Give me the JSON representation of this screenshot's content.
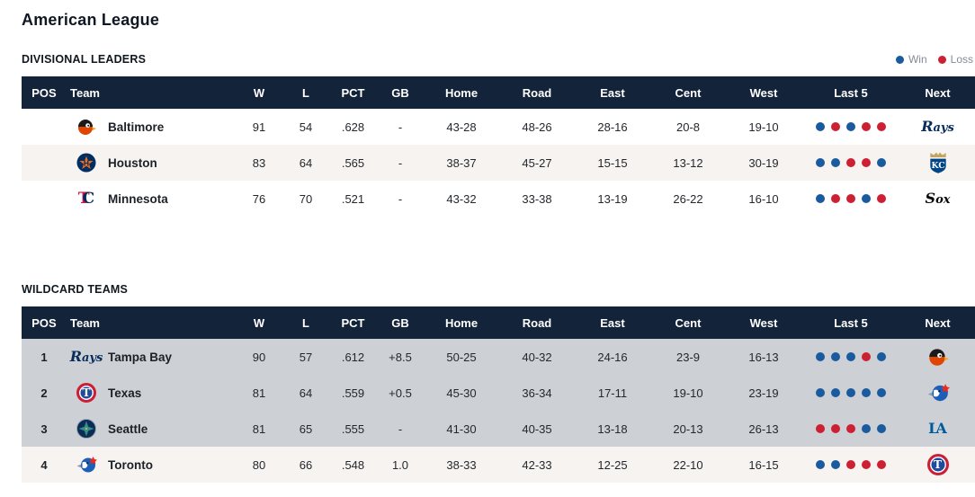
{
  "title": "American League",
  "legend": {
    "win": "Win",
    "loss": "Loss"
  },
  "colors": {
    "header_bg": "#13243a",
    "win_dot": "#1a5a9e",
    "loss_dot": "#cc2033",
    "wildcard_highlight_bg": "#cdd0d4",
    "stripe_bg": "#f6f3f0"
  },
  "columns": [
    "POS",
    "Team",
    "W",
    "L",
    "PCT",
    "GB",
    "Home",
    "Road",
    "East",
    "Cent",
    "West",
    "Last 5",
    "Next"
  ],
  "sections": [
    {
      "label": "DIVISIONAL LEADERS",
      "highlight_rows": [],
      "rows": [
        {
          "pos": "",
          "team": "Baltimore",
          "logo": "orioles",
          "w": "91",
          "l": "54",
          "pct": ".628",
          "gb": "-",
          "home": "43-28",
          "road": "48-26",
          "east": "28-16",
          "cent": "20-8",
          "west": "19-10",
          "last5": [
            "W",
            "L",
            "W",
            "L",
            "L"
          ],
          "next": "rays"
        },
        {
          "pos": "",
          "team": "Houston",
          "logo": "astros",
          "w": "83",
          "l": "64",
          "pct": ".565",
          "gb": "-",
          "home": "38-37",
          "road": "45-27",
          "east": "15-15",
          "cent": "13-12",
          "west": "30-19",
          "last5": [
            "W",
            "W",
            "L",
            "L",
            "W"
          ],
          "next": "royals"
        },
        {
          "pos": "",
          "team": "Minnesota",
          "logo": "twins",
          "w": "76",
          "l": "70",
          "pct": ".521",
          "gb": "-",
          "home": "43-32",
          "road": "33-38",
          "east": "13-19",
          "cent": "26-22",
          "west": "16-10",
          "last5": [
            "W",
            "L",
            "L",
            "W",
            "L"
          ],
          "next": "whitesox"
        }
      ]
    },
    {
      "label": "WILDCARD TEAMS",
      "highlight_rows": [
        0,
        1,
        2
      ],
      "rows": [
        {
          "pos": "1",
          "team": "Tampa Bay",
          "logo": "rays",
          "w": "90",
          "l": "57",
          "pct": ".612",
          "gb": "+8.5",
          "home": "50-25",
          "road": "40-32",
          "east": "24-16",
          "cent": "23-9",
          "west": "16-13",
          "last5": [
            "W",
            "W",
            "W",
            "L",
            "W"
          ],
          "next": "orioles"
        },
        {
          "pos": "2",
          "team": "Texas",
          "logo": "rangers",
          "w": "81",
          "l": "64",
          "pct": ".559",
          "gb": "+0.5",
          "home": "45-30",
          "road": "36-34",
          "east": "17-11",
          "cent": "19-10",
          "west": "23-19",
          "last5": [
            "W",
            "W",
            "W",
            "W",
            "W"
          ],
          "next": "bluejays"
        },
        {
          "pos": "3",
          "team": "Seattle",
          "logo": "mariners",
          "w": "81",
          "l": "65",
          "pct": ".555",
          "gb": "-",
          "home": "41-30",
          "road": "40-35",
          "east": "13-18",
          "cent": "20-13",
          "west": "26-13",
          "last5": [
            "L",
            "L",
            "L",
            "W",
            "W"
          ],
          "next": "dodgers"
        },
        {
          "pos": "4",
          "team": "Toronto",
          "logo": "bluejays",
          "w": "80",
          "l": "66",
          "pct": ".548",
          "gb": "1.0",
          "home": "38-33",
          "road": "42-33",
          "east": "12-25",
          "cent": "22-10",
          "west": "16-15",
          "last5": [
            "W",
            "W",
            "L",
            "L",
            "L"
          ],
          "next": "rangers"
        }
      ]
    }
  ],
  "logos": {
    "orioles": {
      "name": "orioles-logo",
      "kind": "oriole",
      "primary": "#df4601",
      "secondary": "#1a1a1a"
    },
    "astros": {
      "name": "astros-logo",
      "kind": "astros",
      "primary": "#002d62",
      "secondary": "#eb6e1f",
      "label": "H"
    },
    "twins": {
      "name": "twins-logo",
      "kind": "twins",
      "primary": "#d31145",
      "secondary": "#002b5c",
      "label": "TC"
    },
    "rays": {
      "name": "rays-logo",
      "kind": "wordmark",
      "label": "Rays",
      "color": "#092c5c"
    },
    "rangers": {
      "name": "rangers-logo",
      "kind": "rangers",
      "primary": "#1d4b9e",
      "ring": "#cc1f36",
      "label": "T"
    },
    "mariners": {
      "name": "mariners-logo",
      "kind": "mariners",
      "primary": "#0c2c56",
      "secondary": "#2f8f8a",
      "accent": "#c4a15a"
    },
    "bluejays": {
      "name": "blue-jays-logo",
      "kind": "jay",
      "primary": "#1d5fb8",
      "secondary": "#e8291c"
    },
    "royals": {
      "name": "royals-logo",
      "kind": "royals",
      "primary": "#004687",
      "secondary": "#c6a45e",
      "label": "KC"
    },
    "whitesox": {
      "name": "white-sox-logo",
      "kind": "wordmark",
      "label": "Sox",
      "color": "#0b0b0b"
    },
    "dodgers": {
      "name": "dodgers-logo",
      "kind": "dodgers",
      "label": "LA",
      "color": "#005a9c"
    }
  }
}
